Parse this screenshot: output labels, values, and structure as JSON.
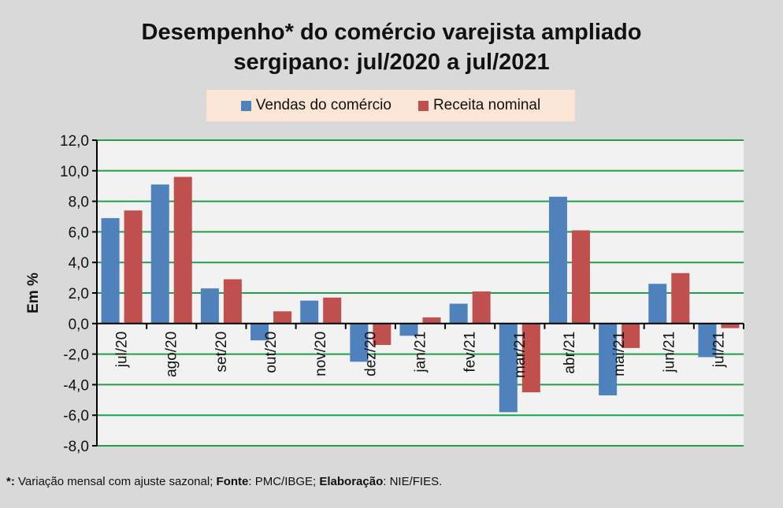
{
  "chart_data": {
    "type": "bar",
    "title_line1": "Desempenho* do comércio varejista ampliado",
    "title_line2": "sergipano: jul/2020 a jul/2021",
    "ylabel": "Em %",
    "xlabel": "",
    "ylim": [
      -8,
      12
    ],
    "yticks": [
      "12,0",
      "10,0",
      "8,0",
      "6,0",
      "4,0",
      "2,0",
      "0,0",
      "-2,0",
      "-4,0",
      "-6,0",
      "-8,0"
    ],
    "ytick_values": [
      12,
      10,
      8,
      6,
      4,
      2,
      0,
      -2,
      -4,
      -6,
      -8
    ],
    "grid": true,
    "legend_position": "top-center",
    "categories": [
      "jul/20",
      "ago/20",
      "set/20",
      "out/20",
      "nov/20",
      "dez/20",
      "jan/21",
      "fev/21",
      "mar/21",
      "abr/21",
      "mai/21",
      "jun/21",
      "jul/21"
    ],
    "series": [
      {
        "name": "Vendas do comércio",
        "color": "#4f81bd",
        "values": [
          6.9,
          9.1,
          2.3,
          -1.1,
          1.5,
          -2.5,
          -0.8,
          1.3,
          -5.8,
          8.3,
          -4.7,
          2.6,
          -2.2
        ]
      },
      {
        "name": "Receita nominal",
        "color": "#c0504d",
        "values": [
          7.4,
          9.6,
          2.9,
          0.8,
          1.7,
          -1.4,
          0.4,
          2.1,
          -4.5,
          6.1,
          -1.6,
          3.3,
          -0.3
        ]
      }
    ]
  },
  "footnote": {
    "star": "*:",
    "t1": " Variação mensal com ajuste sazonal; ",
    "fonte": "Fonte",
    "t2": ": PMC/IBGE; ",
    "elab": "Elaboração",
    "t3": ": NIE/FIES."
  }
}
